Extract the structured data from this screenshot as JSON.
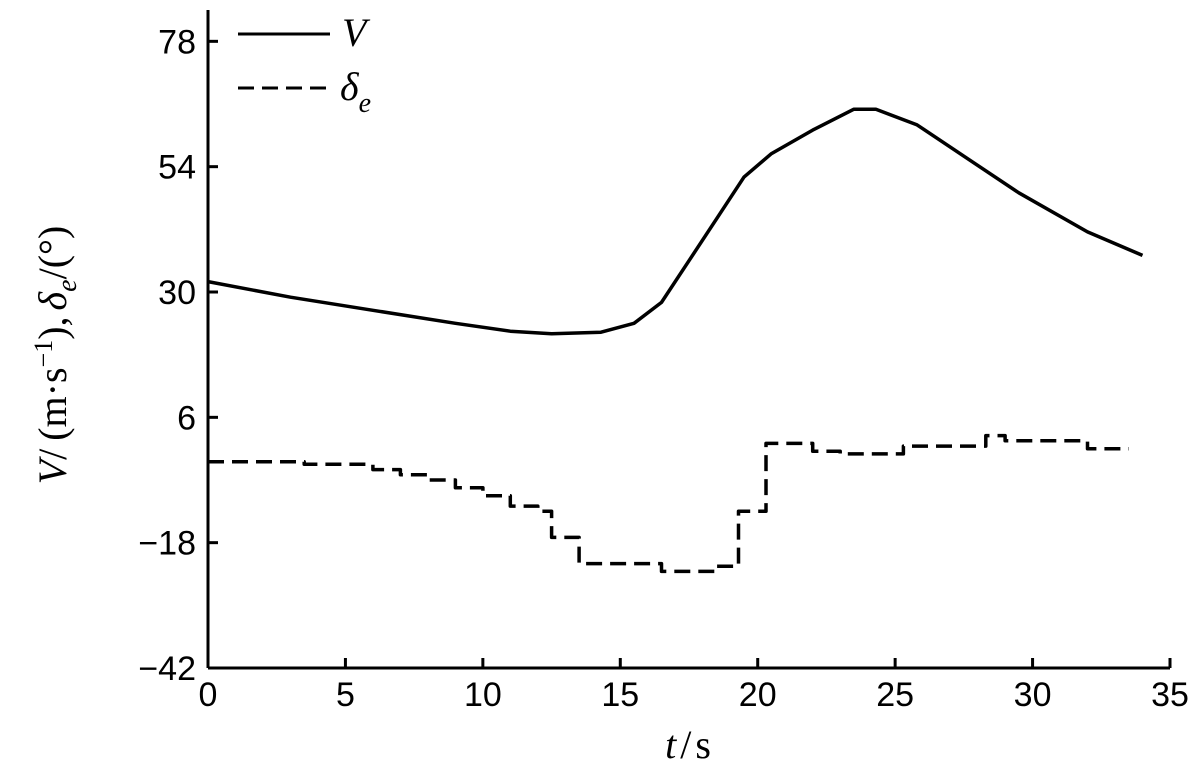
{
  "chart_data": {
    "type": "line",
    "x_axis": {
      "label_var": "t",
      "label_sep": "/",
      "label_unit": "s",
      "min": 0,
      "max": 35,
      "ticks": [
        0,
        5,
        10,
        15,
        20,
        25,
        30,
        35
      ]
    },
    "y_axis": {
      "label_parts": {
        "v_var": "V",
        "v_sep": "/",
        "v_unit_open": "(m·s",
        "v_unit_exp": "−1",
        "v_unit_close": "),",
        "d_var": "δ",
        "d_sub": "e",
        "d_sep": "/",
        "d_unit": "(°)"
      },
      "min": -42,
      "max": 84,
      "ticks": [
        -42,
        -18,
        6,
        30,
        54,
        78
      ],
      "tick_labels": [
        "−42",
        "−18",
        "6",
        "30",
        "54",
        "78"
      ]
    },
    "legend": {
      "position": "top-left",
      "entries": [
        {
          "symbol": "V",
          "subscript": "",
          "style": "solid"
        },
        {
          "symbol": "δ",
          "subscript": "e",
          "style": "dashed"
        }
      ]
    },
    "series": [
      {
        "name": "V",
        "style": "solid",
        "color": "#000000",
        "points": [
          [
            0,
            32
          ],
          [
            3,
            29
          ],
          [
            6,
            26.5
          ],
          [
            9,
            24
          ],
          [
            11,
            22.5
          ],
          [
            12.5,
            22
          ],
          [
            14.3,
            22.3
          ],
          [
            15.5,
            24
          ],
          [
            16.5,
            28
          ],
          [
            17.5,
            36
          ],
          [
            18.5,
            44
          ],
          [
            19.5,
            52
          ],
          [
            20.5,
            56.5
          ],
          [
            22,
            61
          ],
          [
            23.5,
            65
          ],
          [
            24.3,
            65
          ],
          [
            25.8,
            62
          ],
          [
            27.5,
            56
          ],
          [
            29.5,
            49
          ],
          [
            32,
            41.5
          ],
          [
            34,
            37
          ]
        ]
      },
      {
        "name": "δe",
        "style": "dashed",
        "color": "#000000",
        "steps": [
          [
            0,
            -2.5
          ],
          [
            3.5,
            -3
          ],
          [
            6,
            -4
          ],
          [
            7,
            -5
          ],
          [
            8,
            -6
          ],
          [
            9,
            -7.5
          ],
          [
            10,
            -9
          ],
          [
            11,
            -11
          ],
          [
            12,
            -12
          ],
          [
            12.5,
            -17
          ],
          [
            13.5,
            -22
          ],
          [
            16.5,
            -23.5
          ],
          [
            18.5,
            -22.5
          ],
          [
            19.3,
            -12
          ],
          [
            20.3,
            1
          ],
          [
            22,
            -0.5
          ],
          [
            23,
            -1
          ],
          [
            25.3,
            0.5
          ],
          [
            28.3,
            2.5
          ],
          [
            29,
            1.5
          ],
          [
            32,
            0
          ],
          [
            33.5,
            0
          ]
        ]
      }
    ]
  }
}
